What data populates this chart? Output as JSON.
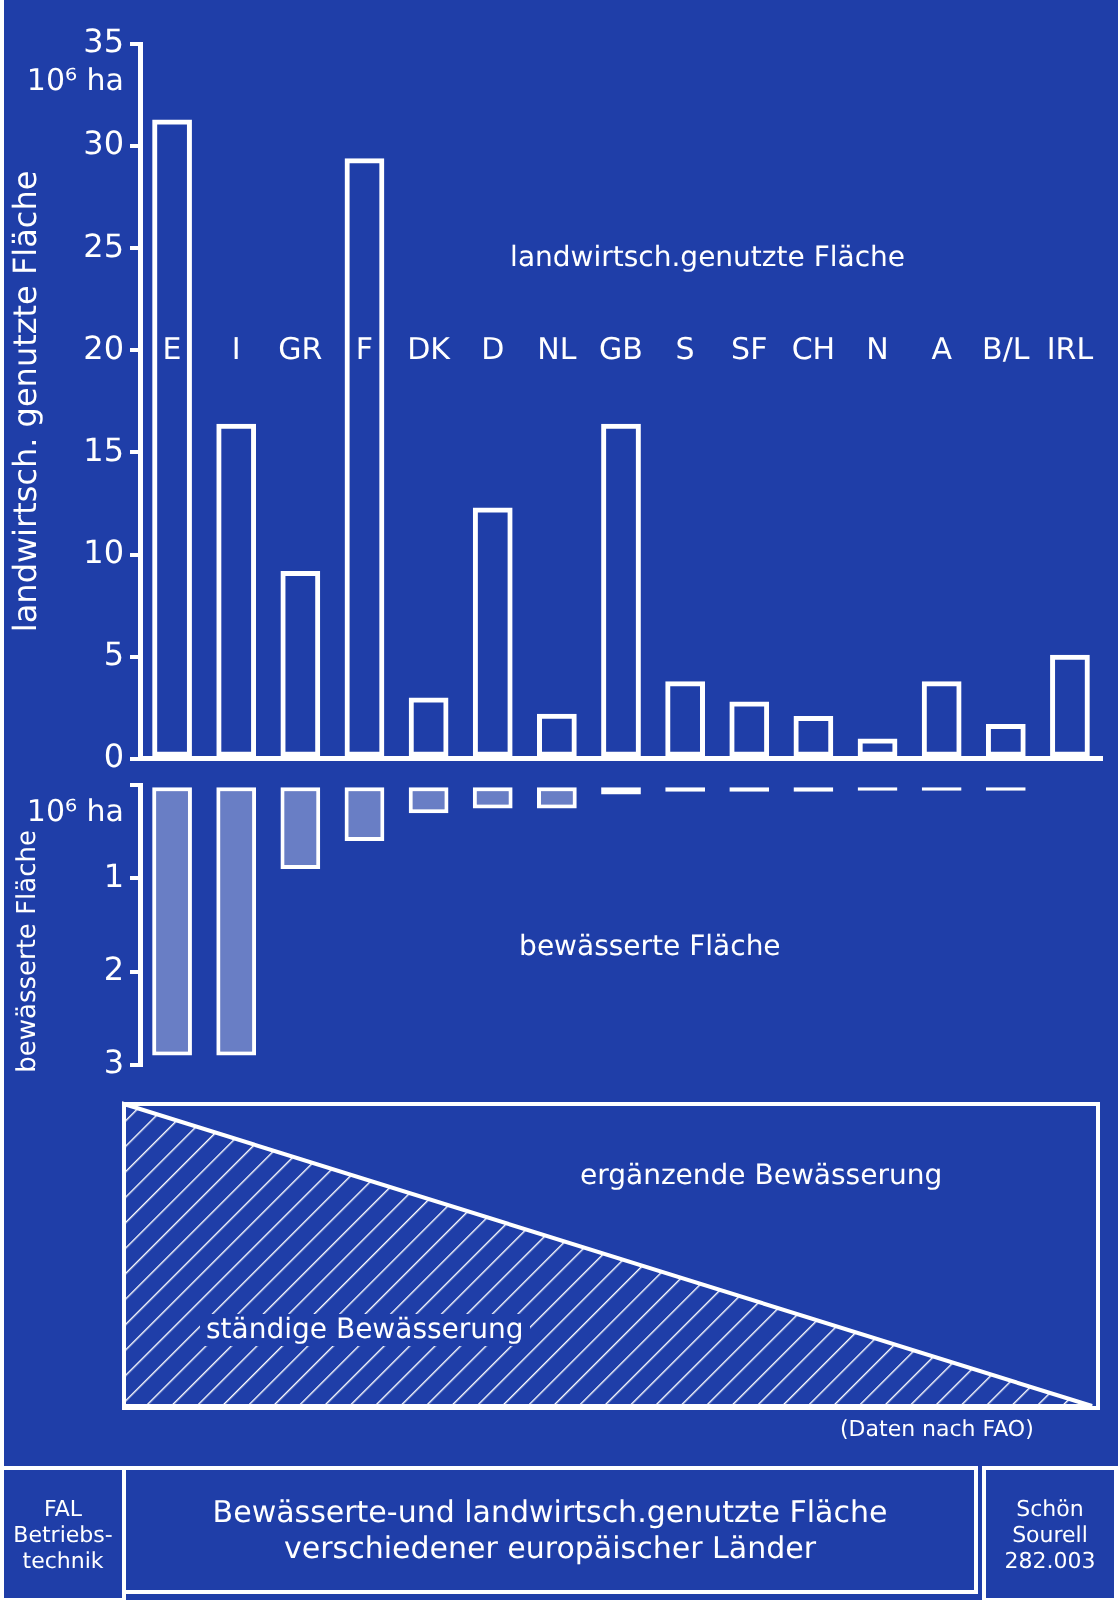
{
  "chart_data": [
    {
      "type": "bar",
      "title": "Bewässerte-und landwirtsch.genutzte Fläche verschiedener europäischer Länder",
      "ylabel": "landwirtsch. genutzte Fläche",
      "categories": [
        "E",
        "I",
        "GR",
        "F",
        "DK",
        "D",
        "NL",
        "GB",
        "S",
        "SF",
        "CH",
        "N",
        "A",
        "B/L",
        "IRL"
      ],
      "series": [
        {
          "color": "#ffffff",
          "values": [
            31.3,
            16.4,
            9.2,
            29.4,
            3.0,
            12.3,
            2.2,
            16.4,
            3.8,
            2.8,
            2.1,
            1.0,
            3.8,
            1.7,
            5.1
          ]
        }
      ],
      "ylim": [
        0,
        35
      ],
      "yticks": [
        0,
        5,
        10,
        15,
        20,
        25,
        30,
        35
      ],
      "grid": false,
      "legend": false,
      "annotations": [
        "10⁶ ha",
        "landwirtsch.genutzte Fläche",
        "FAL\nBetriebs-\ntechnik",
        "Schön\nSourell\n282.003"
      ]
    },
    {
      "type": "bar",
      "ylabel": "bewässerte Fläche",
      "categories": [
        null,
        null,
        null,
        null,
        null,
        null,
        null,
        null,
        null,
        null,
        null,
        null,
        null,
        null,
        null
      ],
      "series": [
        {
          "color": "#ffffff",
          "values": [
            2.9,
            2.9,
            0.9,
            0.6,
            0.3,
            0.25,
            0.25,
            0.1,
            0.07,
            0.07,
            0.07,
            0.06,
            0.06,
            0.06,
            0
          ]
        }
      ],
      "ylim": [
        3,
        0
      ],
      "yticks": [
        {
          "value": 0,
          "label": null
        },
        1,
        2,
        3
      ],
      "grid": false,
      "legend": false,
      "tick_labels": "y",
      "annotations": [
        "10⁶ ha",
        "bewässerte Fläche",
        "ergänzende Bewässerung",
        "ständige Bewässerung",
        "(Daten nach FAO)"
      ]
    }
  ]
}
